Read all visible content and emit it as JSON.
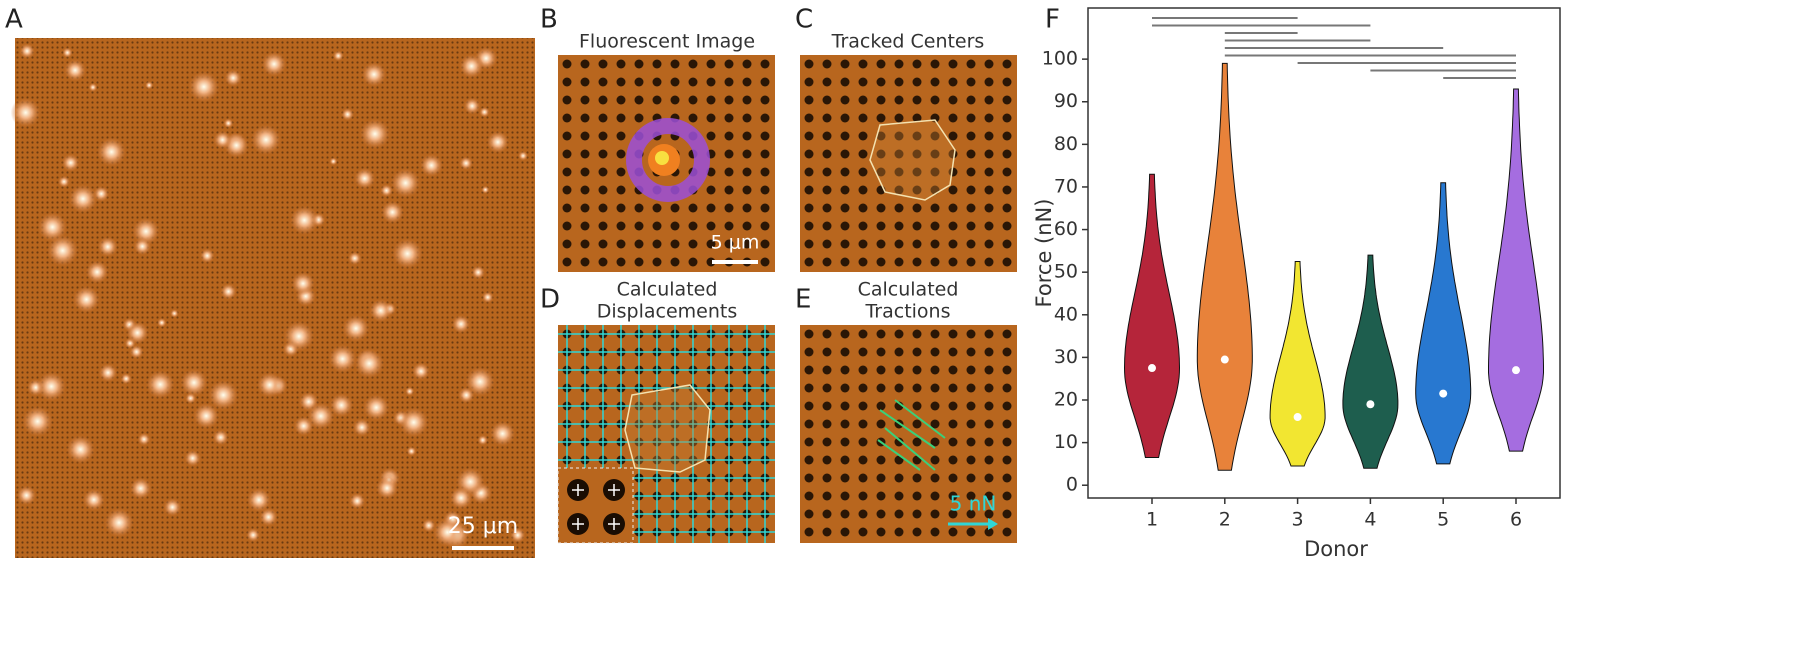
{
  "panels": [
    {
      "letter": "A",
      "scale_bar": "25 μm"
    },
    {
      "letter": "B",
      "title": [
        "Fluorescent Image"
      ],
      "scale_bar": "5 μm"
    },
    {
      "letter": "C",
      "title": [
        "Tracked Centers"
      ]
    },
    {
      "letter": "D",
      "title": [
        "Calculated",
        "Displacements"
      ]
    },
    {
      "letter": "E",
      "title": [
        "Calculated",
        "Tractions"
      ],
      "scale_bar": "5 nN"
    }
  ],
  "chart_data": {
    "type": "violin",
    "letter": "F",
    "xlabel": "Donor",
    "ylabel": "Force (nN)",
    "categories": [
      "1",
      "2",
      "3",
      "4",
      "5",
      "6"
    ],
    "min": [
      6.5,
      3.5,
      4.5,
      4,
      5,
      8
    ],
    "max": [
      73,
      99,
      52.5,
      54,
      71,
      93
    ],
    "mean": [
      27.5,
      29.5,
      16,
      19,
      21.5,
      27
    ],
    "colors": [
      "#b5253a",
      "#e8823a",
      "#f2e631",
      "#1e5e4e",
      "#2878d0",
      "#a56de0"
    ],
    "comparisons": [
      [
        "1",
        "3"
      ],
      [
        "1",
        "4"
      ],
      [
        "2",
        "3"
      ],
      [
        "2",
        "4"
      ],
      [
        "2",
        "5"
      ],
      [
        "2",
        "6"
      ],
      [
        "3",
        "6"
      ],
      [
        "4",
        "6"
      ],
      [
        "5",
        "6"
      ]
    ],
    "ylim": [
      -3,
      112
    ],
    "yticks": [
      0,
      10,
      20,
      30,
      40,
      50,
      60,
      70,
      80,
      90,
      100
    ]
  }
}
